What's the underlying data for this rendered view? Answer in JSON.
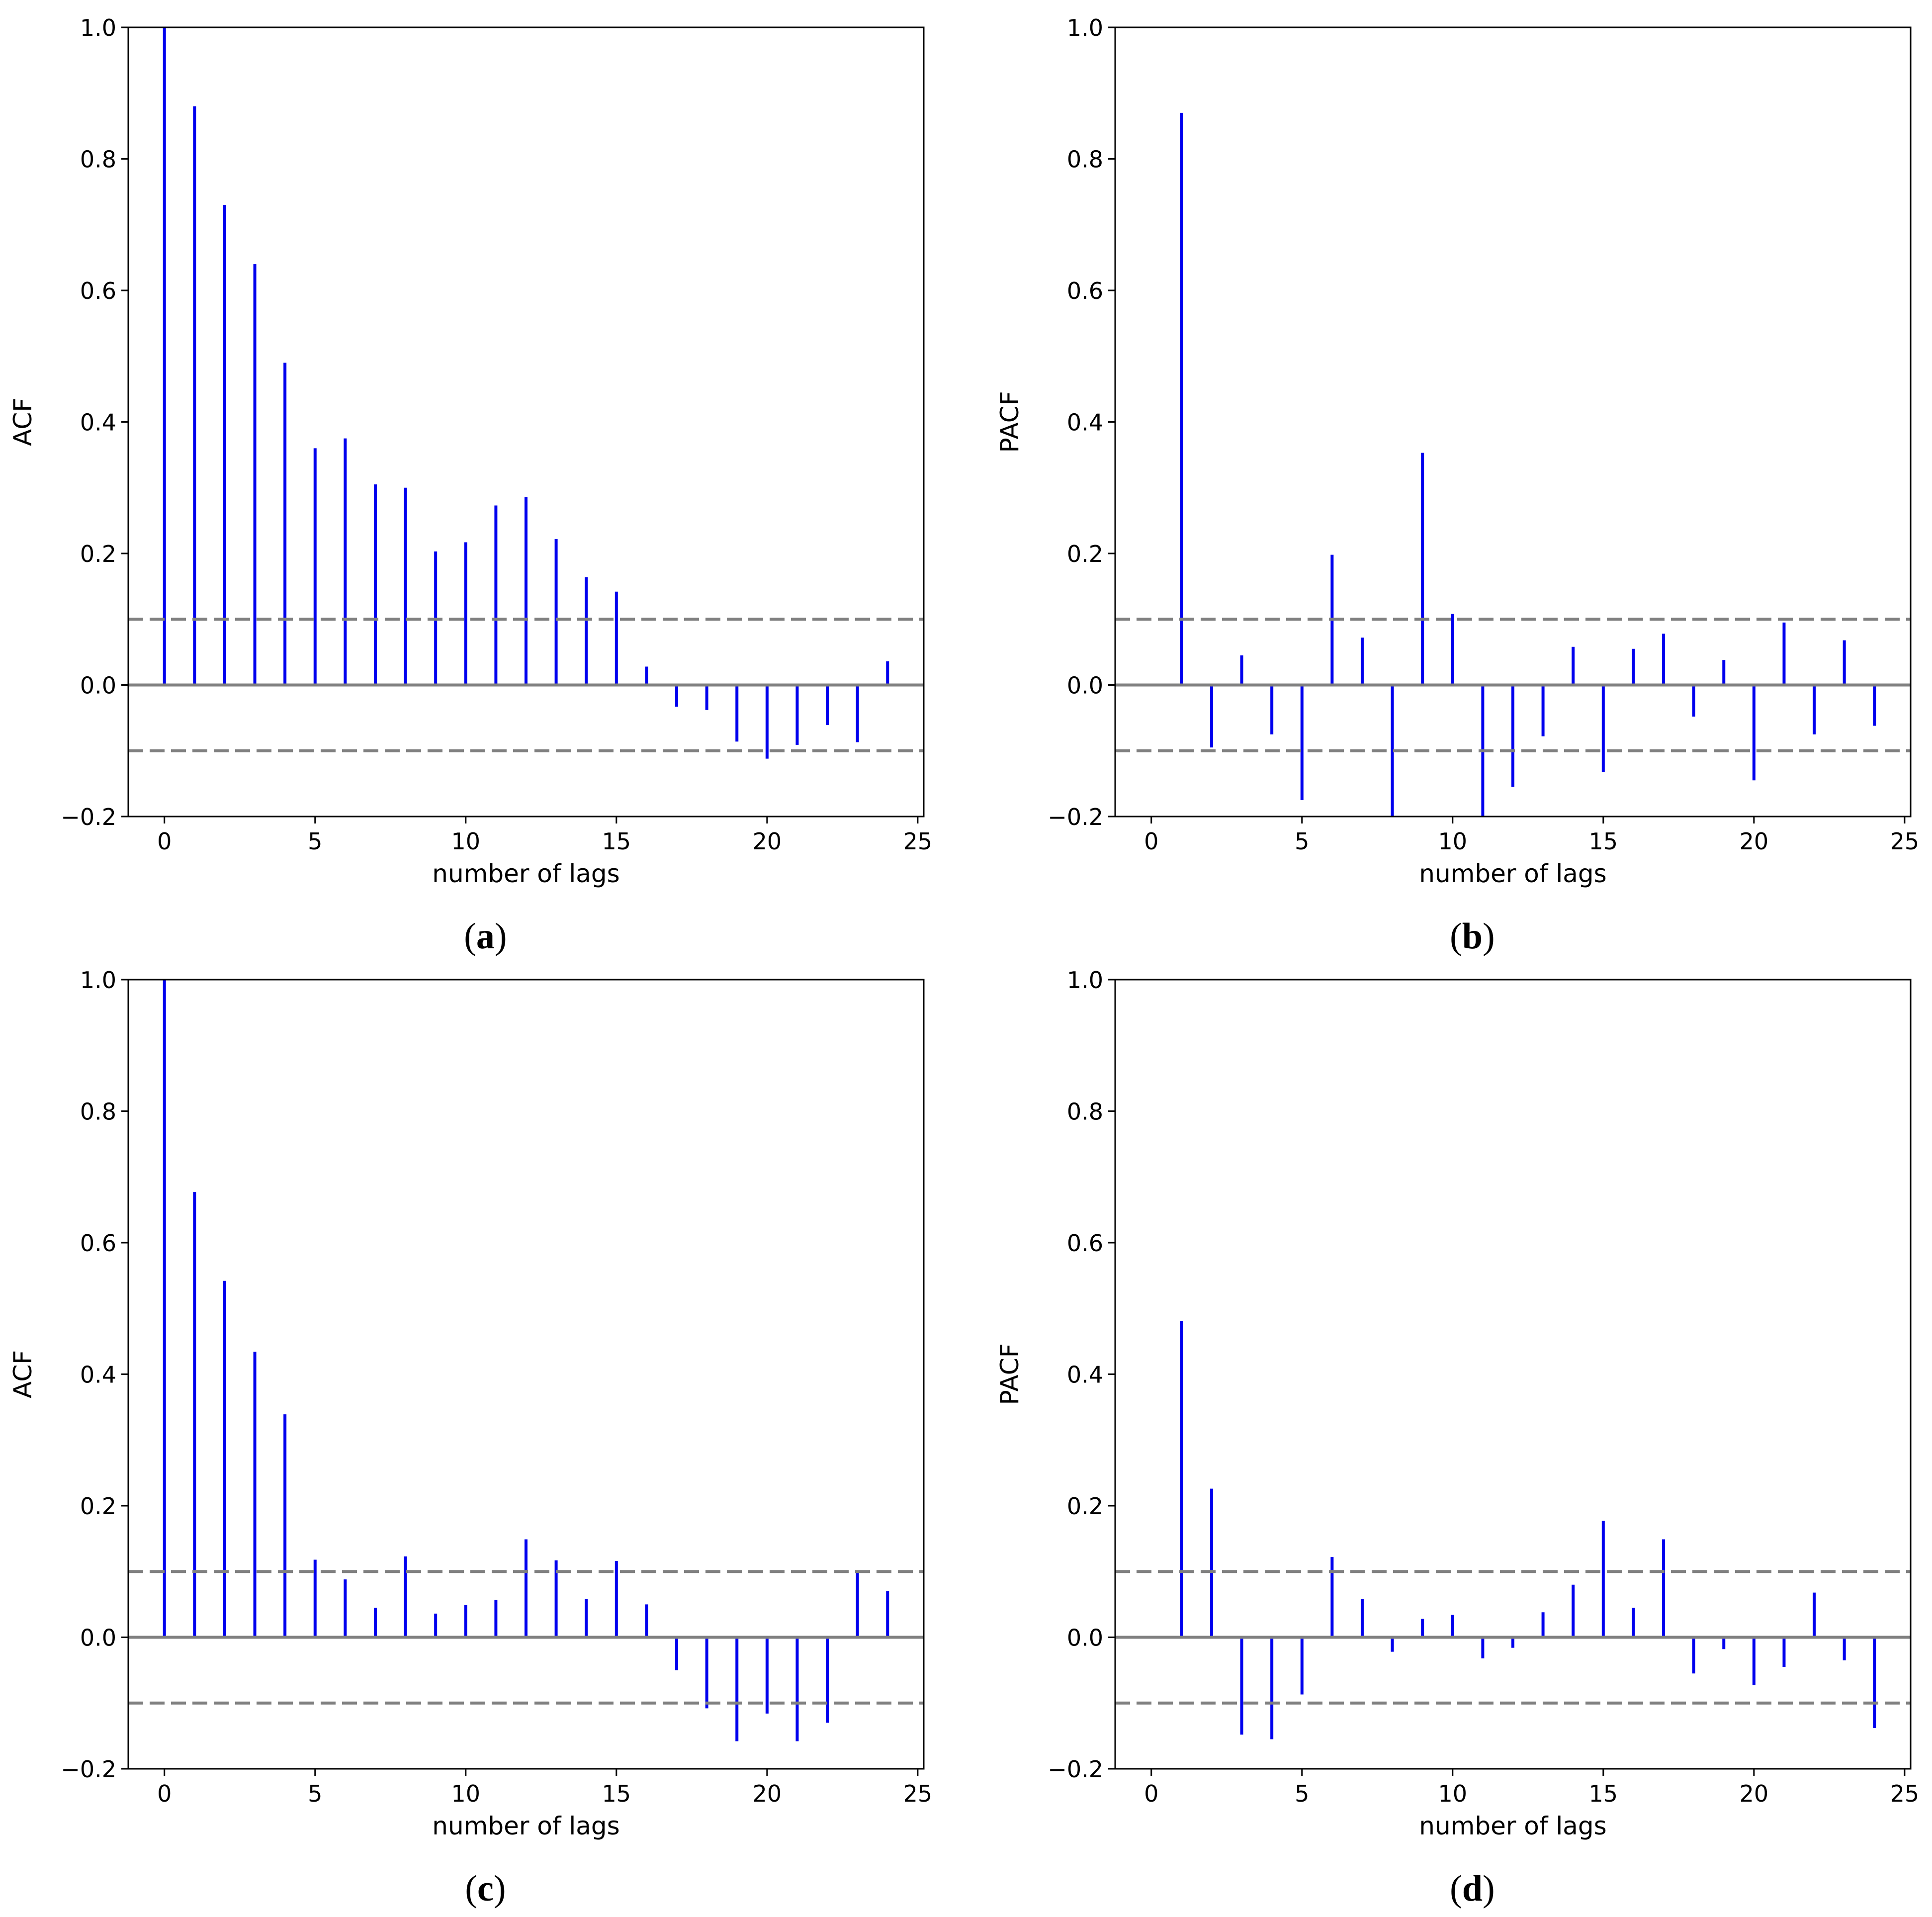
{
  "colors": {
    "stem": "#0000ee",
    "zero_line": "#808080",
    "confidence_line": "#808080",
    "axes": "#000000",
    "background": "#ffffff"
  },
  "chart_data": [
    {
      "type": "stem",
      "panel": "a",
      "caption": {
        "open": "(",
        "letter": "a",
        "close": ")"
      },
      "xlabel": "number of lags",
      "ylabel": "ACF",
      "xlim": [
        -1.2,
        25.2
      ],
      "ylim": [
        -0.2,
        1.0
      ],
      "xticks": [
        0,
        5,
        10,
        15,
        20,
        25
      ],
      "xtick_labels": [
        "0",
        "5",
        "10",
        "15",
        "20",
        "25"
      ],
      "yticks": [
        -0.2,
        0.0,
        0.2,
        0.4,
        0.6,
        0.8,
        1.0
      ],
      "ytick_labels": [
        "−0.2",
        "0.0",
        "0.2",
        "0.4",
        "0.6",
        "0.8",
        "1.0"
      ],
      "confidence_bounds": [
        0.1,
        -0.1
      ],
      "lags": [
        0,
        1,
        2,
        3,
        4,
        5,
        6,
        7,
        8,
        9,
        10,
        11,
        12,
        13,
        14,
        15,
        16,
        17,
        18,
        19,
        20,
        21,
        22,
        23,
        24
      ],
      "values": [
        1.0,
        0.88,
        0.73,
        0.64,
        0.49,
        0.36,
        0.375,
        0.305,
        0.3,
        0.203,
        0.217,
        0.273,
        0.286,
        0.222,
        0.164,
        0.142,
        0.028,
        -0.033,
        -0.038,
        -0.086,
        -0.112,
        -0.091,
        -0.061,
        -0.087,
        0.036
      ]
    },
    {
      "type": "stem",
      "panel": "b",
      "caption": {
        "open": "(",
        "letter": "b",
        "close": ")"
      },
      "xlabel": "number of lags",
      "ylabel": "PACF",
      "xlim": [
        -1.2,
        25.2
      ],
      "ylim": [
        -0.2,
        1.0
      ],
      "xticks": [
        0,
        5,
        10,
        15,
        20,
        25
      ],
      "xtick_labels": [
        "0",
        "5",
        "10",
        "15",
        "20",
        "25"
      ],
      "yticks": [
        -0.2,
        0.0,
        0.2,
        0.4,
        0.6,
        0.8,
        1.0
      ],
      "ytick_labels": [
        "−0.2",
        "0.0",
        "0.2",
        "0.4",
        "0.6",
        "0.8",
        "1.0"
      ],
      "confidence_bounds": [
        0.1,
        -0.1
      ],
      "lags": [
        1,
        2,
        3,
        4,
        5,
        6,
        7,
        8,
        9,
        10,
        11,
        12,
        13,
        14,
        15,
        16,
        17,
        18,
        19,
        20,
        21,
        22,
        23,
        24
      ],
      "values": [
        0.87,
        -0.095,
        0.045,
        -0.075,
        -0.175,
        0.198,
        0.072,
        -0.2,
        0.353,
        0.108,
        -0.2,
        -0.155,
        -0.078,
        0.058,
        -0.132,
        0.055,
        0.078,
        -0.048,
        0.038,
        -0.145,
        0.095,
        -0.075,
        0.068,
        -0.062
      ]
    },
    {
      "type": "stem",
      "panel": "c",
      "caption": {
        "open": "(",
        "letter": "c",
        "close": ")"
      },
      "xlabel": "number of lags",
      "ylabel": "ACF",
      "xlim": [
        -1.2,
        25.2
      ],
      "ylim": [
        -0.2,
        1.0
      ],
      "xticks": [
        0,
        5,
        10,
        15,
        20,
        25
      ],
      "xtick_labels": [
        "0",
        "5",
        "10",
        "15",
        "20",
        "25"
      ],
      "yticks": [
        -0.2,
        0.0,
        0.2,
        0.4,
        0.6,
        0.8,
        1.0
      ],
      "ytick_labels": [
        "−0.2",
        "0.0",
        "0.2",
        "0.4",
        "0.6",
        "0.8",
        "1.0"
      ],
      "confidence_bounds": [
        0.1,
        -0.1
      ],
      "lags": [
        0,
        1,
        2,
        3,
        4,
        5,
        6,
        7,
        8,
        9,
        10,
        11,
        12,
        13,
        14,
        15,
        16,
        17,
        18,
        19,
        20,
        21,
        22,
        23,
        24
      ],
      "values": [
        1.0,
        0.677,
        0.542,
        0.434,
        0.339,
        0.118,
        0.088,
        0.045,
        0.123,
        0.036,
        0.049,
        0.057,
        0.149,
        0.117,
        0.058,
        0.116,
        0.05,
        -0.05,
        -0.108,
        -0.158,
        -0.116,
        -0.158,
        -0.13,
        0.098,
        0.07
      ]
    },
    {
      "type": "stem",
      "panel": "d",
      "caption": {
        "open": "(",
        "letter": "d",
        "close": ")"
      },
      "xlabel": "number of lags",
      "ylabel": "PACF",
      "xlim": [
        -1.2,
        25.2
      ],
      "ylim": [
        -0.2,
        1.0
      ],
      "xticks": [
        0,
        5,
        10,
        15,
        20,
        25
      ],
      "xtick_labels": [
        "0",
        "5",
        "10",
        "15",
        "20",
        "25"
      ],
      "yticks": [
        -0.2,
        0.0,
        0.2,
        0.4,
        0.6,
        0.8,
        1.0
      ],
      "ytick_labels": [
        "−0.2",
        "0.0",
        "0.2",
        "0.4",
        "0.6",
        "0.8",
        "1.0"
      ],
      "confidence_bounds": [
        0.1,
        -0.1
      ],
      "lags": [
        1,
        2,
        3,
        4,
        5,
        6,
        7,
        8,
        9,
        10,
        11,
        12,
        13,
        14,
        15,
        16,
        17,
        18,
        19,
        20,
        21,
        22,
        23,
        24
      ],
      "values": [
        0.481,
        0.226,
        -0.148,
        -0.155,
        -0.087,
        0.122,
        0.058,
        -0.022,
        0.028,
        0.034,
        -0.032,
        -0.016,
        0.038,
        0.08,
        0.177,
        0.045,
        0.149,
        -0.055,
        -0.018,
        -0.073,
        -0.045,
        0.068,
        -0.035,
        -0.138
      ]
    }
  ]
}
